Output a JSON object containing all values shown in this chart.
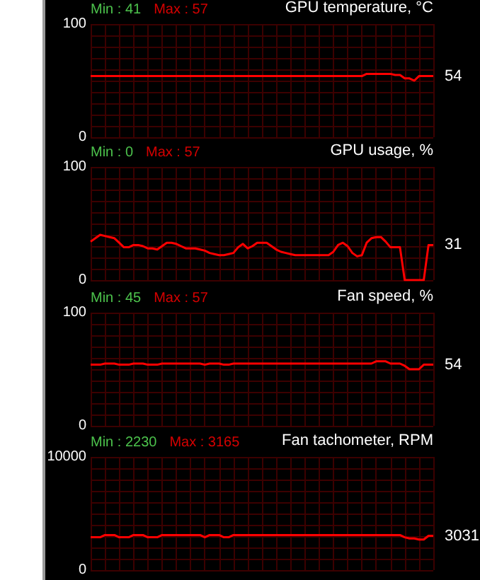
{
  "chart_data": [
    {
      "type": "line",
      "title": "GPU temperature, °C",
      "annotations": [
        "Min : 41",
        "Max : 57"
      ],
      "categories": [
        null,
        null,
        null,
        null,
        null,
        null,
        null,
        null,
        null,
        null,
        null,
        null,
        null,
        null,
        null,
        null,
        null,
        null,
        null,
        null,
        null,
        null,
        null,
        null,
        null,
        null,
        null,
        null,
        null,
        null,
        null,
        null,
        null,
        null,
        null,
        null,
        null,
        null,
        null,
        null,
        null,
        null,
        null,
        null,
        null,
        null,
        null,
        null,
        null,
        null,
        null,
        null,
        null,
        null,
        null,
        null,
        null,
        null,
        null,
        null,
        null,
        null,
        null,
        null,
        null,
        null,
        null,
        null,
        null,
        null,
        null,
        null,
        null
      ],
      "series": [
        {
          "color": "#ff0000",
          "values": [
            54,
            54,
            54,
            54,
            54,
            54,
            54,
            54,
            54,
            54,
            54,
            54,
            54,
            54,
            54,
            54,
            54,
            54,
            54,
            54,
            54,
            54,
            54,
            54,
            54,
            54,
            54,
            54,
            54,
            54,
            54,
            54,
            54,
            54,
            54,
            54,
            54,
            54,
            54,
            54,
            54,
            54,
            54,
            54,
            54,
            54,
            54,
            54,
            54,
            54,
            54,
            54,
            54,
            54,
            54,
            54,
            54,
            54,
            56,
            56,
            56,
            56,
            56,
            56,
            55,
            55,
            52,
            52,
            50,
            54,
            54,
            54,
            54
          ],
          "value_labels": [
            null,
            null,
            null,
            null,
            null,
            null,
            null,
            null,
            null,
            null,
            null,
            null,
            null,
            null,
            null,
            null,
            null,
            null,
            null,
            null,
            null,
            null,
            null,
            null,
            null,
            null,
            null,
            null,
            null,
            null,
            null,
            null,
            null,
            null,
            null,
            null,
            null,
            null,
            null,
            null,
            null,
            null,
            null,
            null,
            null,
            null,
            null,
            null,
            null,
            null,
            null,
            null,
            null,
            null,
            null,
            null,
            null,
            null,
            null,
            null,
            null,
            null,
            null,
            null,
            null,
            null,
            null,
            null,
            null,
            null,
            null,
            null,
            "54"
          ]
        }
      ],
      "ylim": [
        0,
        100
      ],
      "yticks": [
        0,
        {
          "value": 10,
          "label": null
        },
        {
          "value": 20,
          "label": null
        },
        {
          "value": 30,
          "label": null
        },
        {
          "value": 40,
          "label": null
        },
        {
          "value": 50,
          "label": null
        },
        {
          "value": 60,
          "label": null
        },
        {
          "value": 70,
          "label": null
        },
        {
          "value": 80,
          "label": null
        },
        {
          "value": 90,
          "label": null
        },
        100
      ],
      "grid": true,
      "marker": "none",
      "line_style": "solid"
    },
    {
      "type": "line",
      "title": "GPU usage, %",
      "annotations": [
        "Min : 0",
        "Max : 57"
      ],
      "categories": [
        null,
        null,
        null,
        null,
        null,
        null,
        null,
        null,
        null,
        null,
        null,
        null,
        null,
        null,
        null,
        null,
        null,
        null,
        null,
        null,
        null,
        null,
        null,
        null,
        null,
        null,
        null,
        null,
        null,
        null,
        null,
        null,
        null,
        null,
        null,
        null,
        null,
        null,
        null,
        null,
        null,
        null,
        null,
        null,
        null,
        null,
        null,
        null,
        null,
        null,
        null,
        null,
        null,
        null,
        null,
        null,
        null,
        null,
        null,
        null,
        null,
        null,
        null,
        null,
        null,
        null,
        null,
        null,
        null,
        null,
        null,
        null,
        null
      ],
      "series": [
        {
          "color": "#ff0000",
          "values": [
            34,
            37,
            40,
            39,
            38,
            37,
            33,
            29,
            29,
            31,
            31,
            30,
            28,
            28,
            27,
            30,
            33,
            33,
            32,
            30,
            28,
            28,
            28,
            27,
            26,
            24,
            23,
            22,
            22,
            23,
            24,
            29,
            32,
            28,
            30,
            33,
            33,
            33,
            30,
            27,
            25,
            24,
            23,
            22,
            22,
            22,
            22,
            22,
            22,
            22,
            22,
            25,
            31,
            33,
            30,
            24,
            21,
            22,
            33,
            37,
            38,
            38,
            34,
            29,
            29,
            29,
            0,
            0,
            0,
            0,
            0,
            31,
            31
          ],
          "value_labels": [
            null,
            null,
            null,
            null,
            null,
            null,
            null,
            null,
            null,
            null,
            null,
            null,
            null,
            null,
            null,
            null,
            null,
            null,
            null,
            null,
            null,
            null,
            null,
            null,
            null,
            null,
            null,
            null,
            null,
            null,
            null,
            null,
            null,
            null,
            null,
            null,
            null,
            null,
            null,
            null,
            null,
            null,
            null,
            null,
            null,
            null,
            null,
            null,
            null,
            null,
            null,
            null,
            null,
            null,
            null,
            null,
            null,
            null,
            null,
            null,
            null,
            null,
            null,
            null,
            null,
            null,
            null,
            null,
            null,
            null,
            null,
            null,
            "31"
          ]
        }
      ],
      "ylim": [
        0,
        100
      ],
      "yticks": [
        0,
        {
          "value": 10,
          "label": null
        },
        {
          "value": 20,
          "label": null
        },
        {
          "value": 30,
          "label": null
        },
        {
          "value": 40,
          "label": null
        },
        {
          "value": 50,
          "label": null
        },
        {
          "value": 60,
          "label": null
        },
        {
          "value": 70,
          "label": null
        },
        {
          "value": 80,
          "label": null
        },
        {
          "value": 90,
          "label": null
        },
        100
      ],
      "grid": true,
      "marker": "none",
      "line_style": "solid"
    },
    {
      "type": "line",
      "title": "Fan speed, %",
      "annotations": [
        "Min : 45",
        "Max : 57"
      ],
      "categories": [
        null,
        null,
        null,
        null,
        null,
        null,
        null,
        null,
        null,
        null,
        null,
        null,
        null,
        null,
        null,
        null,
        null,
        null,
        null,
        null,
        null,
        null,
        null,
        null,
        null,
        null,
        null,
        null,
        null,
        null,
        null,
        null,
        null,
        null,
        null,
        null,
        null,
        null,
        null,
        null,
        null,
        null,
        null,
        null,
        null,
        null,
        null,
        null,
        null,
        null,
        null,
        null,
        null,
        null,
        null,
        null,
        null,
        null,
        null,
        null,
        null,
        null,
        null,
        null,
        null,
        null,
        null,
        null,
        null,
        null,
        null,
        null,
        null
      ],
      "series": [
        {
          "color": "#ff0000",
          "values": [
            54,
            54,
            54,
            55,
            55,
            55,
            54,
            54,
            54,
            55,
            55,
            55,
            54,
            54,
            54,
            55,
            55,
            55,
            55,
            55,
            55,
            55,
            55,
            55,
            54,
            55,
            55,
            55,
            54,
            54,
            55,
            55,
            55,
            55,
            55,
            55,
            55,
            55,
            55,
            55,
            55,
            55,
            55,
            55,
            55,
            55,
            55,
            55,
            55,
            55,
            55,
            55,
            55,
            55,
            55,
            55,
            55,
            55,
            55,
            55,
            57,
            57,
            57,
            55,
            55,
            55,
            53,
            50,
            50,
            50,
            54,
            54,
            54
          ],
          "value_labels": [
            null,
            null,
            null,
            null,
            null,
            null,
            null,
            null,
            null,
            null,
            null,
            null,
            null,
            null,
            null,
            null,
            null,
            null,
            null,
            null,
            null,
            null,
            null,
            null,
            null,
            null,
            null,
            null,
            null,
            null,
            null,
            null,
            null,
            null,
            null,
            null,
            null,
            null,
            null,
            null,
            null,
            null,
            null,
            null,
            null,
            null,
            null,
            null,
            null,
            null,
            null,
            null,
            null,
            null,
            null,
            null,
            null,
            null,
            null,
            null,
            null,
            null,
            null,
            null,
            null,
            null,
            null,
            null,
            null,
            null,
            null,
            null,
            "54"
          ]
        }
      ],
      "ylim": [
        0,
        100
      ],
      "yticks": [
        0,
        {
          "value": 10,
          "label": null
        },
        {
          "value": 20,
          "label": null
        },
        {
          "value": 30,
          "label": null
        },
        {
          "value": 40,
          "label": null
        },
        {
          "value": 50,
          "label": null
        },
        {
          "value": 60,
          "label": null
        },
        {
          "value": 70,
          "label": null
        },
        {
          "value": 80,
          "label": null
        },
        {
          "value": 90,
          "label": null
        },
        100
      ],
      "grid": true,
      "marker": "none",
      "line_style": "solid"
    },
    {
      "type": "line",
      "title": "Fan tachometer, RPM",
      "annotations": [
        "Min : 2230",
        "Max : 3165"
      ],
      "categories": [
        null,
        null,
        null,
        null,
        null,
        null,
        null,
        null,
        null,
        null,
        null,
        null,
        null,
        null,
        null,
        null,
        null,
        null,
        null,
        null,
        null,
        null,
        null,
        null,
        null,
        null,
        null,
        null,
        null,
        null,
        null,
        null,
        null,
        null,
        null,
        null,
        null,
        null,
        null,
        null,
        null,
        null,
        null,
        null,
        null,
        null,
        null,
        null,
        null,
        null,
        null,
        null,
        null,
        null,
        null,
        null,
        null,
        null,
        null,
        null,
        null,
        null,
        null,
        null,
        null,
        null,
        null,
        null,
        null,
        null,
        null,
        null,
        null
      ],
      "series": [
        {
          "color": "#ff0000",
          "values": [
            2900,
            2900,
            2900,
            3100,
            3100,
            3100,
            2900,
            2900,
            2900,
            3100,
            3100,
            3100,
            2900,
            2900,
            2900,
            3100,
            3100,
            3100,
            3100,
            3100,
            3100,
            3100,
            3100,
            3100,
            2900,
            3100,
            3100,
            3100,
            2900,
            2900,
            3100,
            3100,
            3100,
            3100,
            3100,
            3100,
            3100,
            3100,
            3100,
            3100,
            3100,
            3100,
            3100,
            3100,
            3100,
            3100,
            3100,
            3100,
            3100,
            3100,
            3100,
            3100,
            3100,
            3100,
            3100,
            3100,
            3100,
            3100,
            3100,
            3100,
            3100,
            3100,
            3100,
            3100,
            3100,
            3100,
            2900,
            2800,
            2800,
            2700,
            2700,
            3031,
            3031
          ],
          "value_labels": [
            null,
            null,
            null,
            null,
            null,
            null,
            null,
            null,
            null,
            null,
            null,
            null,
            null,
            null,
            null,
            null,
            null,
            null,
            null,
            null,
            null,
            null,
            null,
            null,
            null,
            null,
            null,
            null,
            null,
            null,
            null,
            null,
            null,
            null,
            null,
            null,
            null,
            null,
            null,
            null,
            null,
            null,
            null,
            null,
            null,
            null,
            null,
            null,
            null,
            null,
            null,
            null,
            null,
            null,
            null,
            null,
            null,
            null,
            null,
            null,
            null,
            null,
            null,
            null,
            null,
            null,
            null,
            null,
            null,
            null,
            null,
            null,
            "3031"
          ]
        }
      ],
      "ylim": [
        0,
        10000
      ],
      "yticks": [
        0,
        {
          "value": 1000,
          "label": null
        },
        {
          "value": 2000,
          "label": null
        },
        {
          "value": 3000,
          "label": null
        },
        {
          "value": 4000,
          "label": null
        },
        {
          "value": 5000,
          "label": null
        },
        {
          "value": 6000,
          "label": null
        },
        {
          "value": 7000,
          "label": null
        },
        {
          "value": 8000,
          "label": null
        },
        {
          "value": 9000,
          "label": null
        },
        10000
      ],
      "grid": true,
      "marker": "none",
      "line_style": "solid"
    }
  ]
}
